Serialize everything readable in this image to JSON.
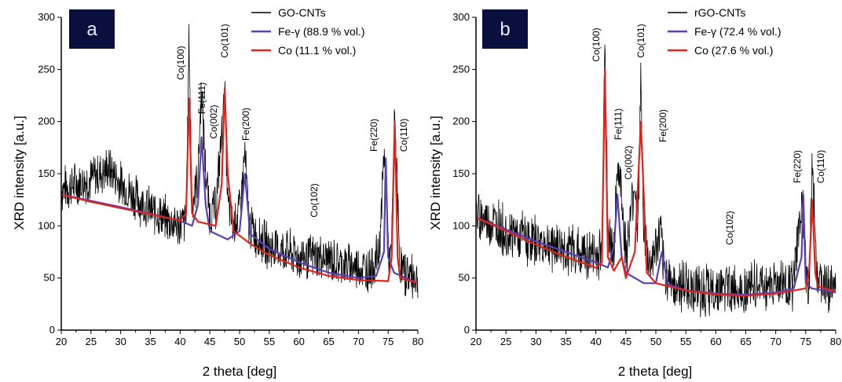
{
  "colors": {
    "measured": "#000000",
    "fe": "#5b3fb4",
    "co": "#e2231a",
    "badge": "#0b0f3d"
  },
  "chart_data": [
    {
      "type": "line",
      "panel_label": "a",
      "xlabel": "2 theta [deg]",
      "ylabel": "XRD intensity [a.u.]",
      "xlim": [
        20,
        80
      ],
      "ylim": [
        0,
        300
      ],
      "xticks": [
        "20",
        "25",
        "30",
        "35",
        "40",
        "45",
        "50",
        "55",
        "60",
        "65",
        "70",
        "75",
        "80"
      ],
      "yticks": [
        "0",
        "50",
        "100",
        "150",
        "200",
        "250",
        "300"
      ],
      "legend_position": "top-right",
      "series": [
        {
          "name": "GO-CNTs",
          "style": "noisy",
          "noise": 25,
          "seed": 7,
          "x": [
            20,
            25,
            28,
            30,
            33,
            35,
            38,
            40,
            41,
            41.5,
            42,
            43,
            43.6,
            44.2,
            45,
            46,
            47.2,
            47.5,
            48,
            49,
            50.2,
            50.9,
            51.6,
            53,
            55,
            58,
            60,
            63,
            65,
            68,
            70,
            72,
            73.5,
            74.4,
            75,
            75.5,
            76.1,
            77,
            78,
            80
          ],
          "y": [
            135,
            145,
            155,
            140,
            125,
            115,
            105,
            100,
            105,
            280,
            120,
            150,
            235,
            160,
            110,
            120,
            200,
            235,
            120,
            100,
            120,
            170,
            100,
            90,
            80,
            75,
            70,
            70,
            68,
            62,
            60,
            58,
            75,
            175,
            70,
            65,
            205,
            60,
            55,
            50
          ]
        },
        {
          "name": "Fe-γ (88.9 % vol.)",
          "style": "smooth",
          "x": [
            20,
            30,
            40,
            42,
            43,
            43.6,
            44.3,
            45,
            48,
            50,
            50.9,
            51.8,
            55,
            60,
            65,
            70,
            73,
            74.3,
            74.6,
            75,
            76,
            80
          ],
          "y": [
            130,
            118,
            105,
            100,
            120,
            185,
            120,
            95,
            87,
            95,
            150,
            92,
            78,
            65,
            55,
            50,
            52,
            75,
            165,
            70,
            55,
            45
          ]
        },
        {
          "name": "Co (11.1 % vol.)",
          "style": "smooth",
          "x": [
            20,
            25,
            30,
            35,
            40,
            41,
            41.5,
            42,
            43,
            46,
            47,
            47.5,
            48,
            49,
            52,
            55,
            60,
            65,
            70,
            75,
            75.6,
            76.1,
            76.6,
            77,
            80
          ],
          "y": [
            130,
            123,
            117,
            111,
            105,
            112,
            222,
            112,
            104,
            100,
            140,
            232,
            150,
            95,
            82,
            72,
            60,
            52,
            48,
            47,
            70,
            200,
            70,
            50,
            45
          ]
        }
      ],
      "annotations": [
        "Co(100)",
        "Fe(111)",
        "Co(002)",
        "Co(101)",
        "Fe(200)",
        "Co(102)",
        "Fe(220)",
        "Co(110)"
      ]
    },
    {
      "type": "line",
      "panel_label": "b",
      "xlabel": "2 theta [deg]",
      "ylabel": "XRD intensity [a.u.]",
      "xlim": [
        20,
        80
      ],
      "ylim": [
        0,
        300
      ],
      "xticks": [
        "20",
        "25",
        "30",
        "35",
        "40",
        "45",
        "50",
        "55",
        "60",
        "65",
        "70",
        "75",
        "80"
      ],
      "yticks": [
        "0",
        "50",
        "100",
        "150",
        "200",
        "250",
        "300"
      ],
      "legend_position": "top-right",
      "series": [
        {
          "name": "rGO-CNTs",
          "style": "noisy",
          "noise": 28,
          "seed": 19,
          "x": [
            20,
            25,
            30,
            35,
            40,
            41,
            41.5,
            42,
            43,
            43.6,
            44.3,
            45,
            46.5,
            47,
            47.5,
            48,
            49,
            50.8,
            51.5,
            53,
            55,
            60,
            62,
            65,
            70,
            73,
            74.4,
            75.1,
            75.6,
            76.1,
            77,
            80
          ],
          "y": [
            110,
            95,
            85,
            78,
            70,
            75,
            295,
            90,
            80,
            160,
            130,
            70,
            140,
            95,
            245,
            90,
            60,
            90,
            55,
            45,
            40,
            38,
            40,
            42,
            45,
            45,
            130,
            45,
            40,
            165,
            45,
            40
          ]
        },
        {
          "name": "Fe-γ (72.4 % vol.)",
          "style": "smooth",
          "x": [
            20,
            30,
            40,
            42,
            43,
            43.6,
            44.3,
            45,
            48,
            50,
            51,
            52,
            55,
            60,
            65,
            70,
            73,
            74.3,
            74.6,
            75,
            76,
            80
          ],
          "y": [
            108,
            85,
            65,
            60,
            80,
            130,
            70,
            55,
            45,
            45,
            75,
            44,
            38,
            35,
            34,
            36,
            40,
            70,
            130,
            45,
            40,
            36
          ]
        },
        {
          "name": "Co (27.6 % vol.)",
          "style": "smooth",
          "x": [
            20,
            25,
            30,
            35,
            40,
            41,
            41.5,
            42,
            43,
            44.3,
            45,
            46.5,
            47.5,
            48.5,
            50,
            55,
            60,
            65,
            70,
            75,
            75.6,
            76.1,
            76.6,
            77,
            80
          ],
          "y": [
            108,
            95,
            82,
            70,
            60,
            65,
            250,
            70,
            57,
            70,
            50,
            75,
            200,
            55,
            45,
            38,
            34,
            33,
            35,
            40,
            60,
            125,
            55,
            42,
            37
          ]
        }
      ],
      "annotations": [
        "Co(100)",
        "Fe(111)",
        "Co(002)",
        "Co(101)",
        "Fe(200)",
        "Co(102)",
        "Fe(220)",
        "Co(110)"
      ]
    }
  ]
}
